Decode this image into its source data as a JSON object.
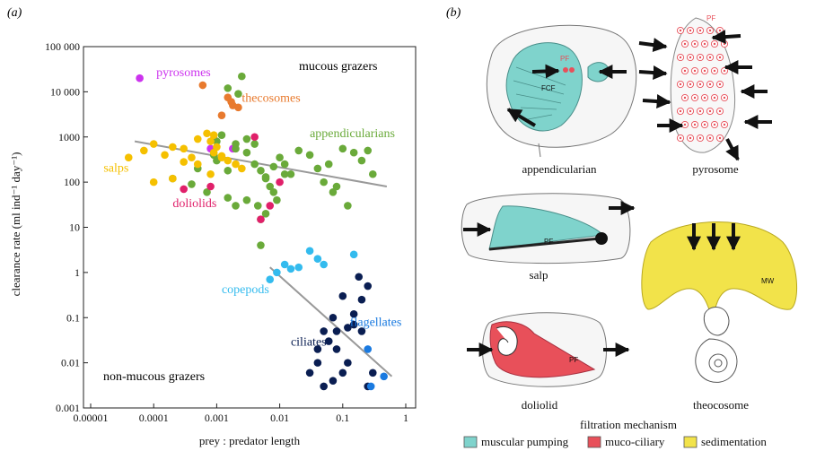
{
  "panel_a_label": "(a)",
  "panel_b_label": "(b)",
  "colors": {
    "pyrosomes": "#cc33ee",
    "thecosomes": "#e87a2e",
    "appendicularians": "#6aaa3a",
    "salps": "#f5c000",
    "doliolids": "#e0206a",
    "copepods": "#33bbee",
    "ciliates": "#0a1e52",
    "flagellates": "#1a7ae0",
    "regression": "#999999",
    "muscular": "#7fd3cc",
    "mucociliary": "#e8505a",
    "sedimentation": "#f2e34a"
  },
  "chart_data": {
    "type": "scatter",
    "xlabel": "prey : predator length",
    "ylabel": "clearance rate (ml ind⁻¹ day⁻¹)",
    "x_scale": "log",
    "y_scale": "log",
    "xlim": [
      1e-05,
      2
    ],
    "ylim": [
      0.001,
      100000
    ],
    "x_ticks": [
      1e-05,
      0.0001,
      0.001,
      0.01,
      0.1,
      1
    ],
    "x_tick_labels": [
      "0.00001",
      "0.0001",
      "0.001",
      "0.01",
      "0.1",
      "1"
    ],
    "y_ticks": [
      0.001,
      0.01,
      0.1,
      1,
      10,
      100,
      1000,
      10000,
      100000
    ],
    "y_tick_labels": [
      "0.001",
      "0.01",
      "0.1",
      "1",
      "10",
      "100",
      "1000",
      "10 000",
      "100 000"
    ],
    "annotations": {
      "mucous": "mucous grazers",
      "nonmucous": "non-mucous grazers"
    },
    "regression_lines": [
      {
        "x": [
          5e-05,
          0.5
        ],
        "y": [
          800,
          80
        ]
      },
      {
        "x": [
          0.007,
          0.6
        ],
        "y": [
          1.3,
          0.005
        ]
      }
    ],
    "series": [
      {
        "name": "pyrosomes",
        "color_key": "pyrosomes",
        "x": [
          6e-05,
          0.0018,
          0.0008,
          0.0009
        ],
        "y": [
          20000,
          550,
          550,
          900
        ]
      },
      {
        "name": "thecosomes",
        "color_key": "thecosomes",
        "x": [
          0.0006,
          0.0015,
          0.0018,
          0.0022,
          0.0017,
          0.0012
        ],
        "y": [
          14000,
          7500,
          5000,
          4500,
          6000,
          3000
        ]
      },
      {
        "name": "appendicularians",
        "color_key": "appendicularians",
        "x": [
          0.0025,
          0.0015,
          0.0022,
          0.001,
          0.0012,
          0.002,
          0.003,
          0.004,
          0.005,
          0.006,
          0.007,
          0.008,
          0.009,
          0.01,
          0.012,
          0.015,
          0.02,
          0.03,
          0.04,
          0.05,
          0.07,
          0.1,
          0.15,
          0.2,
          0.3,
          0.0002,
          0.0005,
          0.001,
          0.002,
          0.004,
          0.006,
          0.008,
          0.003,
          0.005,
          0.002,
          0.0007,
          0.0004,
          0.0015,
          0.012,
          0.08,
          0.12,
          0.25,
          0.06,
          0.006,
          0.005,
          0.0045,
          0.0015,
          0.0009,
          0.003
        ],
        "y": [
          22000,
          12000,
          9000,
          800,
          1100,
          700,
          450,
          250,
          180,
          130,
          80,
          60,
          40,
          350,
          250,
          150,
          500,
          400,
          200,
          100,
          60,
          550,
          450,
          300,
          150,
          120,
          200,
          300,
          550,
          700,
          120,
          220,
          40,
          15,
          30,
          60,
          90,
          45,
          150,
          80,
          30,
          500,
          250,
          20,
          4,
          30,
          180,
          400,
          900
        ]
      },
      {
        "name": "salps",
        "color_key": "salps",
        "x": [
          4e-05,
          7e-05,
          0.0001,
          0.00015,
          0.0002,
          0.0003,
          0.0004,
          0.0005,
          0.0007,
          0.0008,
          0.0009,
          0.001,
          0.0012,
          0.0015,
          0.002,
          0.0025,
          0.0001,
          0.0002,
          0.0003,
          0.0008,
          0.0005,
          0.0009,
          0.0012
        ],
        "y": [
          350,
          500,
          700,
          400,
          600,
          550,
          350,
          250,
          1200,
          800,
          450,
          600,
          350,
          300,
          250,
          200,
          100,
          120,
          280,
          150,
          900,
          1100,
          380
        ]
      },
      {
        "name": "doliolids",
        "color_key": "doliolids",
        "x": [
          0.0003,
          0.0008,
          0.004,
          0.01,
          0.007,
          0.005
        ],
        "y": [
          70,
          80,
          1000,
          100,
          30,
          15
        ]
      },
      {
        "name": "copepods",
        "color_key": "copepods",
        "x": [
          0.007,
          0.009,
          0.012,
          0.015,
          0.02,
          0.03,
          0.04,
          0.05,
          0.15
        ],
        "y": [
          0.7,
          1.0,
          1.5,
          1.2,
          1.3,
          3.0,
          2.0,
          1.5,
          2.5
        ]
      },
      {
        "name": "ciliates",
        "color_key": "ciliates",
        "x": [
          0.03,
          0.04,
          0.05,
          0.06,
          0.07,
          0.08,
          0.1,
          0.12,
          0.15,
          0.2,
          0.25,
          0.3,
          0.05,
          0.08,
          0.12,
          0.18,
          0.25,
          0.04,
          0.07,
          0.15,
          0.1,
          0.2
        ],
        "y": [
          0.006,
          0.01,
          0.05,
          0.03,
          0.1,
          0.02,
          0.3,
          0.06,
          0.07,
          0.05,
          0.5,
          0.006,
          0.003,
          0.05,
          0.01,
          0.8,
          0.003,
          0.02,
          0.004,
          0.12,
          0.006,
          0.25
        ]
      },
      {
        "name": "flagellates",
        "color_key": "flagellates",
        "x": [
          0.25,
          0.45,
          0.28
        ],
        "y": [
          0.02,
          0.005,
          0.003
        ]
      }
    ],
    "series_labels": [
      {
        "text": "pyrosomes",
        "color_key": "pyrosomes",
        "x": 0.00011,
        "y": 22000
      },
      {
        "text": "thecosomes",
        "color_key": "thecosomes",
        "x": 0.0025,
        "y": 6000
      },
      {
        "text": "appendicularians",
        "color_key": "appendicularians",
        "x": 0.03,
        "y": 1000
      },
      {
        "text": "salps",
        "color_key": "salps",
        "x": 1.6e-05,
        "y": 170
      },
      {
        "text": "doliolids",
        "color_key": "doliolids",
        "x": 0.0002,
        "y": 28
      },
      {
        "text": "copepods",
        "color_key": "copepods",
        "x": 0.0012,
        "y": 0.35
      },
      {
        "text": "flagellates",
        "color_key": "flagellates",
        "x": 0.13,
        "y": 0.065
      },
      {
        "text": "ciliates",
        "color_key": "ciliates",
        "x": 0.015,
        "y": 0.024
      }
    ]
  },
  "panel_b": {
    "appendicularian": "appendicularian",
    "pyrosome": "pyrosome",
    "salp": "salp",
    "doliolid": "doliolid",
    "theocosome": "theocosome",
    "tags": {
      "pf": "PF",
      "fcf": "FCF",
      "mw": "MW"
    },
    "legend": {
      "title": "filtration mechanism",
      "items": [
        {
          "label": "muscular pumping",
          "color_key": "muscular"
        },
        {
          "label": "muco-ciliary",
          "color_key": "mucociliary"
        },
        {
          "label": "sedimentation",
          "color_key": "sedimentation"
        }
      ]
    }
  }
}
